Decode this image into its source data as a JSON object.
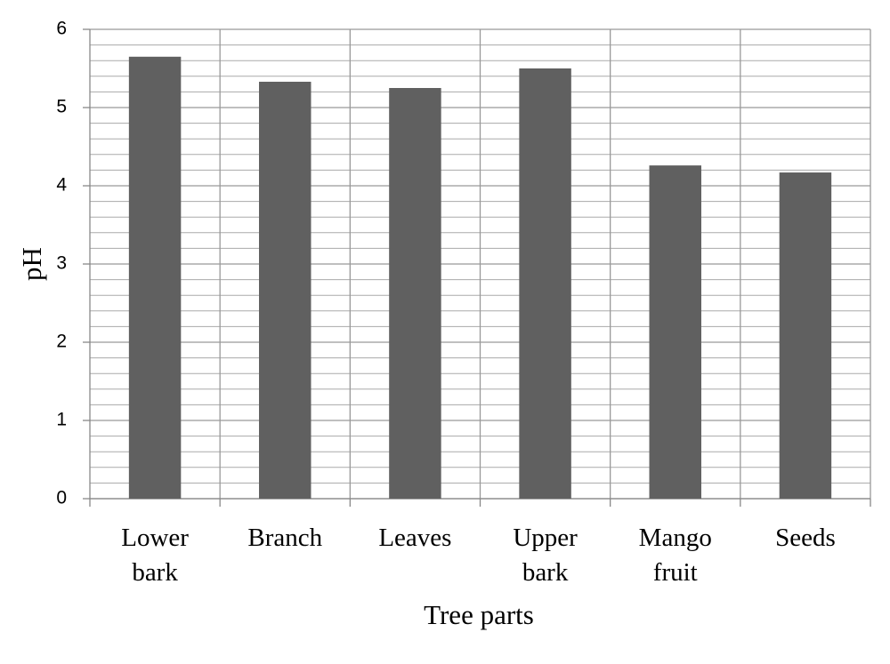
{
  "chart_data": {
    "type": "bar",
    "x_label": "Tree parts",
    "y_label": "pH",
    "categories": [
      "Lower bark",
      "Branch",
      "Leaves",
      "Upper bark",
      "Mango fruit",
      "Seeds"
    ],
    "values": [
      5.65,
      5.33,
      5.25,
      5.5,
      4.26,
      4.17
    ],
    "color": "#606060",
    "ylim": [
      0,
      6
    ],
    "yticks": [
      0,
      1,
      2,
      3,
      4,
      5,
      6
    ],
    "yminorticks": [
      0.2,
      0.4,
      0.6,
      0.8,
      1.2,
      1.4,
      1.6,
      1.8,
      2.2,
      2.4,
      2.6,
      2.8,
      3.2,
      3.4,
      3.6,
      3.8,
      4.2,
      4.4,
      4.6,
      4.8,
      5.2,
      5.4,
      5.6,
      5.8
    ],
    "grid": true
  }
}
